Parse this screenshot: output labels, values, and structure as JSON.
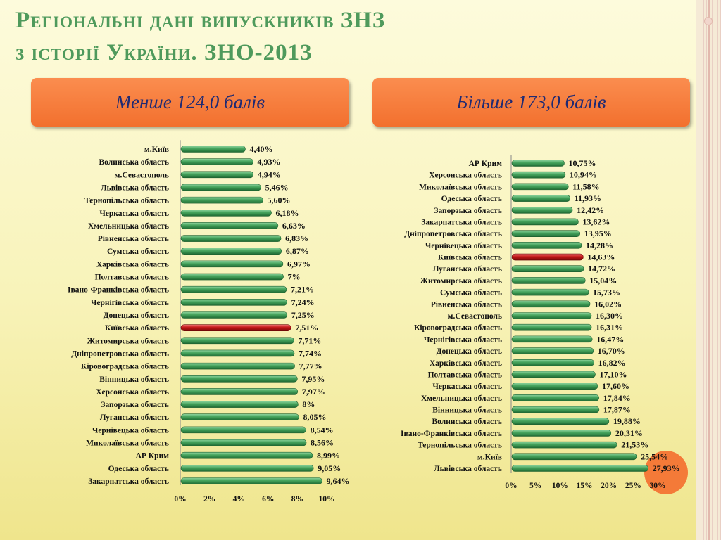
{
  "slide": {
    "title_line1": "Регіональні дані випускників ЗНЗ",
    "title_line2": "з історії України. ЗНО-2013",
    "left_pill": "Менше 124,0 балів",
    "right_pill": "Більше 173,0 балів"
  },
  "colors": {
    "bar": "#3f9d58",
    "highlight": "#c21616",
    "pill": "#f47a38",
    "title": "#4f9a5c"
  },
  "chart_data": [
    {
      "type": "bar",
      "orientation": "horizontal",
      "title": "Менше 124,0 балів",
      "xlim": [
        0,
        10
      ],
      "ticks": [
        "0%",
        "2%",
        "4%",
        "6%",
        "8%",
        "10%"
      ],
      "highlight_category": "Київська область",
      "categories": [
        "м.Київ",
        "Волинська область",
        "м.Севастополь",
        "Львівська область",
        "Тернопільська область",
        "Черкаська область",
        "Хмельницька область",
        "Рівненська область",
        "Сумська область",
        "Харківська область",
        "Полтавська область",
        "Івано-Франківська область",
        "Чернігівська область",
        "Донецька область",
        "Київська область",
        "Житомирська область",
        "Дніпропетровська область",
        "Кіровоградська область",
        "Вінницька область",
        "Херсонська область",
        "Запорзька область",
        "Луганська область",
        "Чернівецька область",
        "Миколаївська область",
        "АР Крим",
        "Одеська область",
        "Закарпатська область"
      ],
      "values": [
        4.4,
        4.93,
        4.94,
        5.46,
        5.6,
        6.18,
        6.63,
        6.83,
        6.87,
        6.97,
        7.0,
        7.21,
        7.24,
        7.25,
        7.51,
        7.71,
        7.74,
        7.77,
        7.95,
        7.97,
        8.0,
        8.05,
        8.54,
        8.56,
        8.99,
        9.05,
        9.64
      ],
      "value_labels": [
        "4,40%",
        "4,93%",
        "4,94%",
        "5,46%",
        "5,60%",
        "6,18%",
        "6,63%",
        "6,83%",
        "6,87%",
        "6,97%",
        "7%",
        "7,21%",
        "7,24%",
        "7,25%",
        "7,51%",
        "7,71%",
        "7,74%",
        "7,77%",
        "7,95%",
        "7,97%",
        "8%",
        "8,05%",
        "8,54%",
        "8,56%",
        "8,99%",
        "9,05%",
        "9,64%"
      ]
    },
    {
      "type": "bar",
      "orientation": "horizontal",
      "title": "Більше 173,0 балів",
      "xlim": [
        0,
        30
      ],
      "ticks": [
        "0%",
        "5%",
        "10%",
        "15%",
        "20%",
        "25%",
        "30%"
      ],
      "highlight_category": "Київська область",
      "categories": [
        "АР Крим",
        "Херсонська область",
        "Миколаївська область",
        "Одеська область",
        "Запорзька область",
        "Закарпатська область",
        "Дніпропетровська область",
        "Чернівецька область",
        "Київська область",
        "Луганська область",
        "Житомирська область",
        "Сумська область",
        "Рівненська область",
        "м.Севастополь",
        "Кіровоградська область",
        "Чернігівська область",
        "Донецька область",
        "Харківська область",
        "Полтавська область",
        "Черкаська область",
        "Хмельницька область",
        "Вінницька область",
        "Волинська область",
        "Івано-Франківська область",
        "Тернопільська область",
        "м.Київ",
        "Львівська область"
      ],
      "values": [
        10.75,
        10.94,
        11.58,
        11.93,
        12.42,
        13.62,
        13.95,
        14.28,
        14.63,
        14.72,
        15.04,
        15.73,
        16.02,
        16.3,
        16.31,
        16.47,
        16.7,
        16.82,
        17.1,
        17.6,
        17.84,
        17.87,
        19.88,
        20.31,
        21.53,
        25.54,
        27.93
      ],
      "value_labels": [
        "10,75%",
        "10,94%",
        "11,58%",
        "11,93%",
        "12,42%",
        "13,62%",
        "13,95%",
        "14,28%",
        "14,63%",
        "14,72%",
        "15,04%",
        "15,73%",
        "16,02%",
        "16,30%",
        "16,31%",
        "16,47%",
        "16,70%",
        "16,82%",
        "17,10%",
        "17,60%",
        "17,84%",
        "17,87%",
        "19,88%",
        "20,31%",
        "21,53%",
        "25,54%",
        "27,93%"
      ]
    }
  ]
}
